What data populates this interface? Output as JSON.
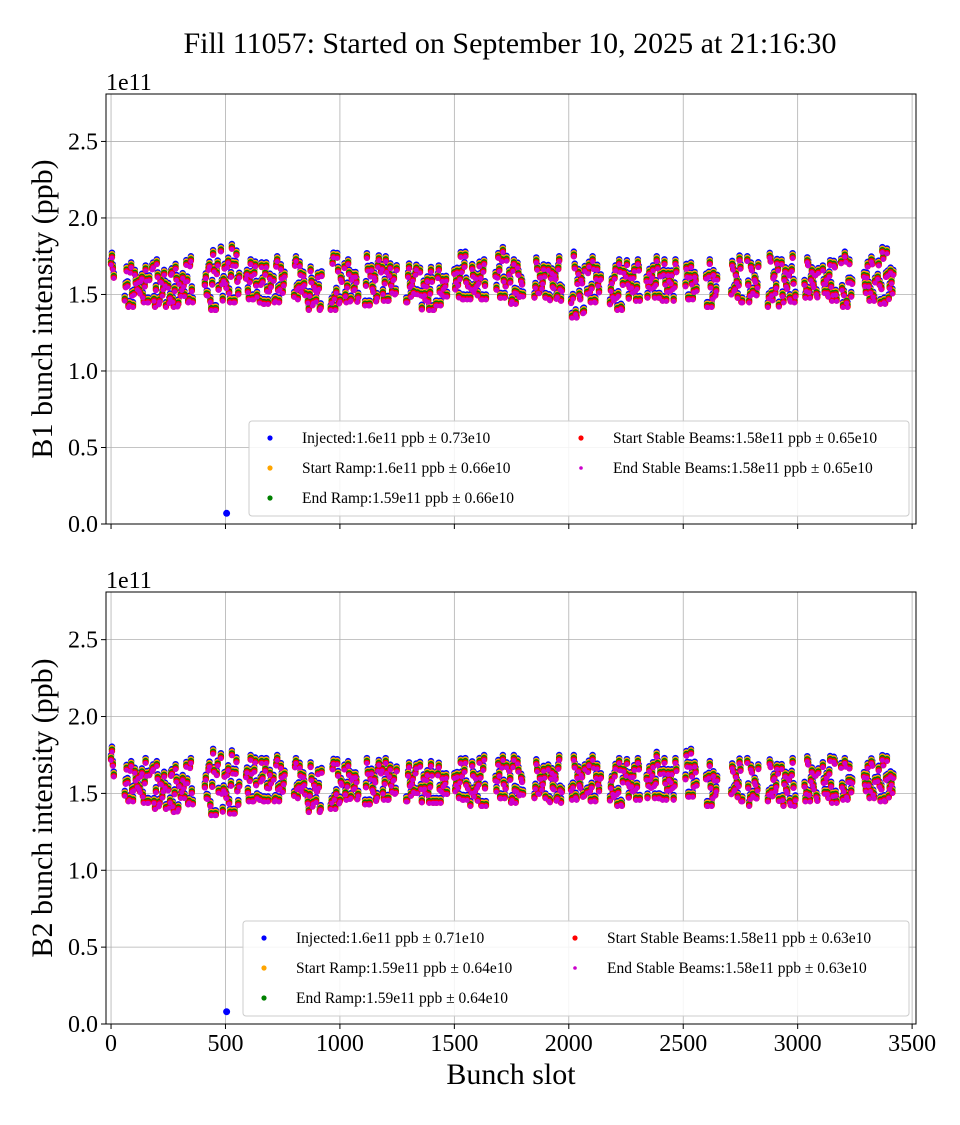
{
  "title": "Fill 11057: Started on September 10, 2025 at 21:16:30",
  "colors": {
    "Injected": "#0000ff",
    "Start Ramp": "#ffa500",
    "End Ramp": "#008000",
    "Start Stable Beams": "#ff0000",
    "End Stable Beams": "#cc00cc"
  },
  "chart_data": [
    {
      "type": "scatter",
      "ylabel": "B1 bunch intensity (ppb)",
      "xlabel": "",
      "offset_label": "1e11",
      "xlim": [
        -22,
        3517
      ],
      "ylim": [
        0,
        2.81
      ],
      "xticks": [
        "0",
        "500",
        "1000",
        "1500",
        "2000",
        "2500",
        "3000",
        "3500"
      ],
      "yticks": [
        "0.0",
        "0.5",
        "1.0",
        "1.5",
        "2.0",
        "2.5"
      ],
      "grid": true,
      "legend_position": "lower-right",
      "legend": [
        "Injected:1.6e11 ppb ± 0.73e10",
        "Start Ramp:1.6e11 ppb ± 0.66e10",
        "End Ramp:1.59e11 ppb ± 0.66e10",
        "Start Stable Beams:1.58e11 ppb ± 0.65e10",
        "End Stable Beams:1.58e11 ppb ± 0.65e10"
      ],
      "series_names": [
        "Injected",
        "Start Ramp",
        "End Ramp",
        "Start Stable Beams",
        "End Stable Beams"
      ],
      "series_offsets": [
        0.03,
        0.02,
        0.01,
        0.0,
        -0.005
      ],
      "trains_note_units": "bunch slot start, end, min, max (1e11 ppb)",
      "trains": [
        [
          0,
          15,
          1.6,
          1.83
        ],
        [
          60,
          110,
          1.42,
          1.68
        ],
        [
          115,
          170,
          1.45,
          1.66
        ],
        [
          180,
          240,
          1.42,
          1.7
        ],
        [
          250,
          300,
          1.42,
          1.67
        ],
        [
          305,
          360,
          1.45,
          1.72
        ],
        [
          410,
          470,
          1.4,
          1.76
        ],
        [
          480,
          560,
          1.45,
          1.8
        ],
        [
          590,
          640,
          1.47,
          1.7
        ],
        [
          650,
          700,
          1.44,
          1.68
        ],
        [
          710,
          760,
          1.45,
          1.72
        ],
        [
          800,
          850,
          1.47,
          1.72
        ],
        [
          860,
          920,
          1.4,
          1.66
        ],
        [
          960,
          1010,
          1.4,
          1.75
        ],
        [
          1020,
          1080,
          1.45,
          1.7
        ],
        [
          1110,
          1170,
          1.43,
          1.74
        ],
        [
          1180,
          1250,
          1.46,
          1.72
        ],
        [
          1290,
          1340,
          1.45,
          1.7
        ],
        [
          1350,
          1410,
          1.4,
          1.65
        ],
        [
          1420,
          1470,
          1.43,
          1.66
        ],
        [
          1500,
          1560,
          1.47,
          1.75
        ],
        [
          1570,
          1640,
          1.47,
          1.7
        ],
        [
          1680,
          1730,
          1.48,
          1.78
        ],
        [
          1740,
          1800,
          1.44,
          1.7
        ],
        [
          1850,
          1900,
          1.48,
          1.72
        ],
        [
          1910,
          1970,
          1.46,
          1.72
        ],
        [
          2010,
          2070,
          1.35,
          1.75
        ],
        [
          2080,
          2140,
          1.45,
          1.72
        ],
        [
          2180,
          2240,
          1.4,
          1.7
        ],
        [
          2250,
          2310,
          1.46,
          1.7
        ],
        [
          2340,
          2400,
          1.48,
          1.72
        ],
        [
          2410,
          2470,
          1.46,
          1.7
        ],
        [
          2510,
          2560,
          1.47,
          1.68
        ],
        [
          2600,
          2650,
          1.42,
          1.7
        ],
        [
          2710,
          2760,
          1.45,
          1.75
        ],
        [
          2780,
          2830,
          1.45,
          1.72
        ],
        [
          2870,
          2920,
          1.42,
          1.78
        ],
        [
          2930,
          2990,
          1.45,
          1.74
        ],
        [
          3030,
          3090,
          1.48,
          1.72
        ],
        [
          3110,
          3170,
          1.46,
          1.7
        ],
        [
          3190,
          3240,
          1.42,
          1.75
        ],
        [
          3290,
          3340,
          1.46,
          1.72
        ],
        [
          3350,
          3420,
          1.44,
          1.78
        ]
      ],
      "outliers": [
        {
          "series": "Injected",
          "x": 505,
          "y": 0.07
        }
      ]
    },
    {
      "type": "scatter",
      "ylabel": "B2 bunch intensity (ppb)",
      "xlabel": "Bunch slot",
      "offset_label": "1e11",
      "xlim": [
        -22,
        3517
      ],
      "ylim": [
        0,
        2.81
      ],
      "xticks": [
        "0",
        "500",
        "1000",
        "1500",
        "2000",
        "2500",
        "3000",
        "3500"
      ],
      "yticks": [
        "0.0",
        "0.5",
        "1.0",
        "1.5",
        "2.0",
        "2.5"
      ],
      "grid": true,
      "legend_position": "lower-right",
      "legend": [
        "Injected:1.6e11 ppb ± 0.71e10",
        "Start Ramp:1.59e11 ppb ± 0.64e10",
        "End Ramp:1.59e11 ppb ± 0.64e10",
        "Start Stable Beams:1.58e11 ppb ± 0.63e10",
        "End Stable Beams:1.58e11 ppb ± 0.63e10"
      ],
      "series_names": [
        "Injected",
        "Start Ramp",
        "End Ramp",
        "Start Stable Beams",
        "End Stable Beams"
      ],
      "series_offsets": [
        0.03,
        0.02,
        0.01,
        0.0,
        -0.005
      ],
      "trains": [
        [
          0,
          15,
          1.6,
          1.88
        ],
        [
          60,
          110,
          1.45,
          1.68
        ],
        [
          115,
          170,
          1.44,
          1.7
        ],
        [
          180,
          240,
          1.4,
          1.68
        ],
        [
          250,
          300,
          1.38,
          1.66
        ],
        [
          305,
          360,
          1.43,
          1.7
        ],
        [
          410,
          470,
          1.36,
          1.76
        ],
        [
          480,
          560,
          1.37,
          1.75
        ],
        [
          590,
          640,
          1.45,
          1.72
        ],
        [
          650,
          700,
          1.45,
          1.7
        ],
        [
          710,
          760,
          1.45,
          1.72
        ],
        [
          800,
          850,
          1.47,
          1.7
        ],
        [
          860,
          920,
          1.38,
          1.68
        ],
        [
          960,
          1010,
          1.4,
          1.7
        ],
        [
          1020,
          1080,
          1.46,
          1.68
        ],
        [
          1110,
          1170,
          1.43,
          1.7
        ],
        [
          1180,
          1250,
          1.46,
          1.7
        ],
        [
          1290,
          1340,
          1.45,
          1.7
        ],
        [
          1350,
          1410,
          1.44,
          1.68
        ],
        [
          1420,
          1470,
          1.44,
          1.67
        ],
        [
          1500,
          1560,
          1.46,
          1.7
        ],
        [
          1570,
          1640,
          1.42,
          1.72
        ],
        [
          1680,
          1730,
          1.47,
          1.72
        ],
        [
          1740,
          1800,
          1.44,
          1.72
        ],
        [
          1850,
          1900,
          1.47,
          1.7
        ],
        [
          1910,
          1970,
          1.44,
          1.72
        ],
        [
          2010,
          2070,
          1.46,
          1.72
        ],
        [
          2080,
          2140,
          1.45,
          1.72
        ],
        [
          2180,
          2240,
          1.42,
          1.7
        ],
        [
          2250,
          2310,
          1.46,
          1.7
        ],
        [
          2340,
          2400,
          1.47,
          1.74
        ],
        [
          2410,
          2470,
          1.46,
          1.7
        ],
        [
          2510,
          2560,
          1.48,
          1.76
        ],
        [
          2600,
          2650,
          1.42,
          1.68
        ],
        [
          2710,
          2760,
          1.45,
          1.72
        ],
        [
          2780,
          2830,
          1.42,
          1.7
        ],
        [
          2870,
          2920,
          1.45,
          1.72
        ],
        [
          2930,
          2990,
          1.42,
          1.7
        ],
        [
          3030,
          3090,
          1.45,
          1.72
        ],
        [
          3110,
          3170,
          1.44,
          1.72
        ],
        [
          3190,
          3240,
          1.46,
          1.7
        ],
        [
          3290,
          3340,
          1.47,
          1.7
        ],
        [
          3350,
          3420,
          1.45,
          1.72
        ]
      ],
      "outliers": [
        {
          "series": "Injected",
          "x": 505,
          "y": 0.08
        }
      ]
    }
  ]
}
